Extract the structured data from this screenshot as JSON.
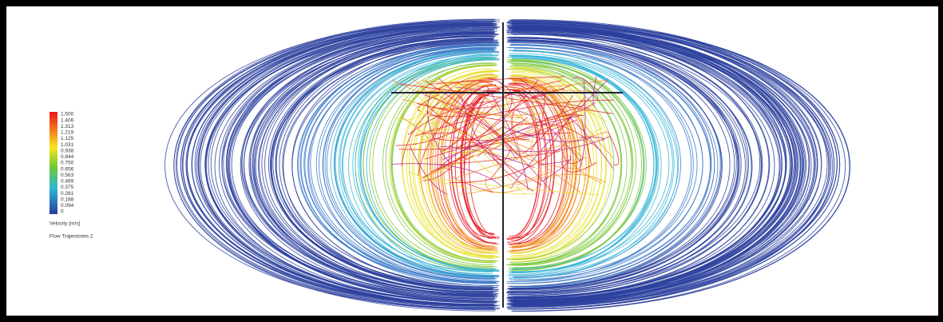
{
  "legend": {
    "labels": [
      "1.500",
      "1.406",
      "1.313",
      "1.219",
      "1.125",
      "1.031",
      "0.938",
      "0.844",
      "0.750",
      "0.656",
      "0.563",
      "0.469",
      "0.375",
      "0.281",
      "0.188",
      "0.094",
      "0"
    ],
    "title": "Velocity [m/s]"
  },
  "caption": "Flow Trajectories 2"
}
